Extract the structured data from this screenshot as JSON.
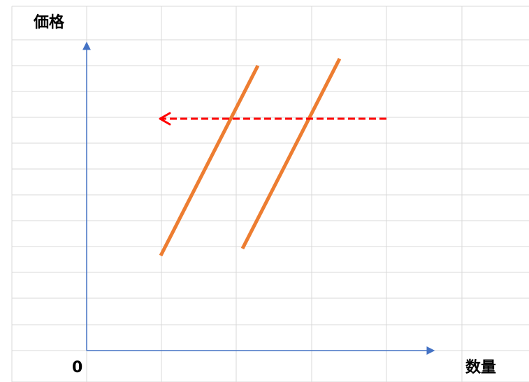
{
  "axes": {
    "y_label": "価格",
    "x_label": "数量",
    "origin_label": "0"
  },
  "colors": {
    "grid": "#d9d9d9",
    "axis": "#4472c4",
    "curve": "#ed7d31",
    "shift_arrow": "#ff0000",
    "background": "#ffffff"
  }
}
